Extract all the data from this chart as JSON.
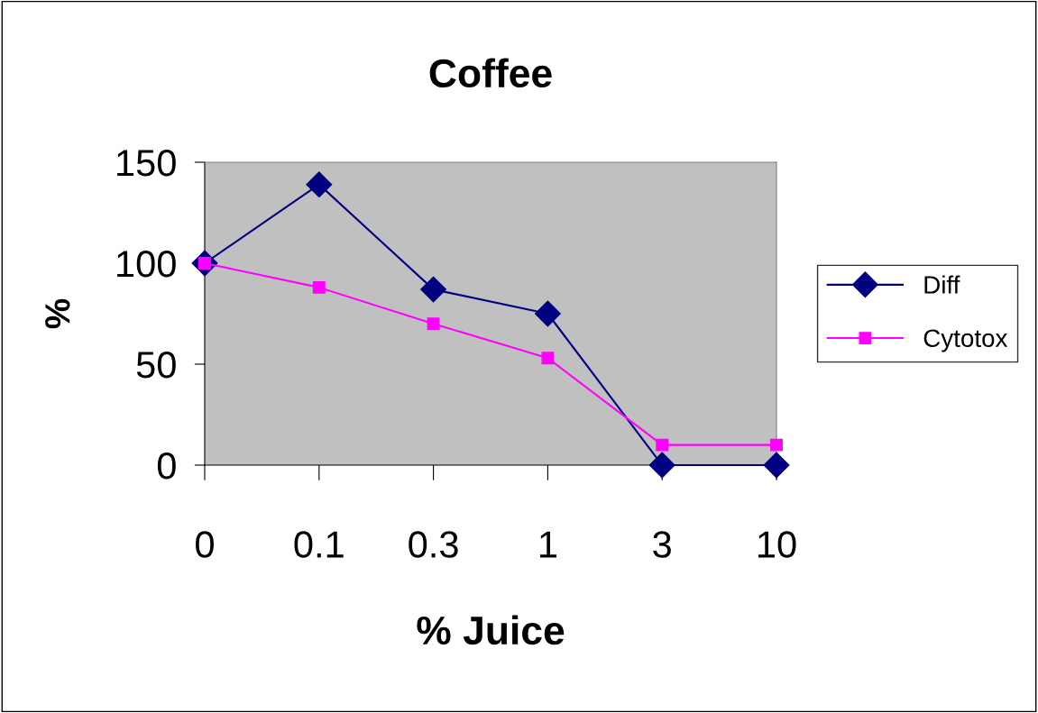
{
  "chart_data": {
    "type": "line",
    "title": "Coffee",
    "xlabel": "% Juice",
    "ylabel": "%",
    "categories": [
      "0",
      "0.1",
      "0.3",
      "1",
      "3",
      "10"
    ],
    "series": [
      {
        "name": "Diff",
        "color": "#000080",
        "marker": "diamond",
        "values": [
          100,
          139,
          87,
          75,
          0,
          0
        ]
      },
      {
        "name": "Cytotox",
        "color": "#ff00ff",
        "marker": "square",
        "values": [
          100,
          88,
          70,
          53,
          10,
          10
        ]
      }
    ],
    "ylim": [
      0,
      150
    ],
    "yticks": [
      0,
      50,
      100,
      150
    ],
    "grid": false,
    "legend": "right",
    "line_style": "solid"
  }
}
